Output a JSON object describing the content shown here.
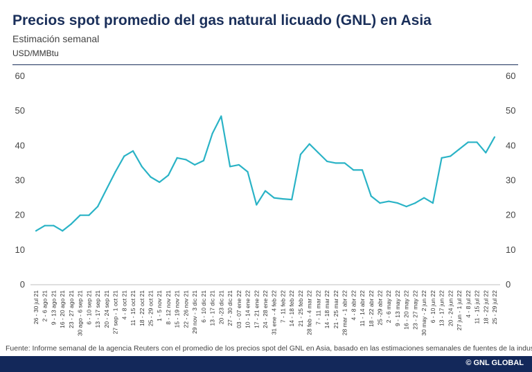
{
  "header": {
    "title": "Precios spot promedio del gas natural licuado (GNL) en Asia",
    "subtitle": "Estimación semanal",
    "unit": "USD/MMBtu"
  },
  "source_note": "Fuente: Informe semanal de la agencia Reuters con el promedio de los precios spot del GNL en Asia, basado en las estimaciones semanales de fuentes de la industria.",
  "brand": "© GNL GLOBAL",
  "colors": {
    "line": "#2ab3c6",
    "title": "#1a2f5a",
    "footer": "#13285a"
  },
  "chart_data": {
    "type": "line",
    "title": "Precios spot promedio del gas natural licuado (GNL) en Asia",
    "subtitle": "Estimación semanal",
    "ylabel": "USD/MMBtu",
    "ylim": [
      0,
      60
    ],
    "yticks": [
      0,
      10,
      20,
      30,
      40,
      50,
      60
    ],
    "grid": false,
    "categories": [
      "26 - 30 jul 21",
      "2 - 6 ago 21",
      "9 - 13 ago 21",
      "16 - 20 ago 21",
      "23 - 27 ago 21",
      "30 ago - 6 sep 21",
      "6 - 10 sep 21",
      "13 - 17 sep 21",
      "20 - 24 sep 21",
      "27 sep - 1 oct 21",
      "4 - 8 oct 21",
      "11 - 15 oct 21",
      "18 - 22 oct 21",
      "25 - 29 oct 21",
      "1 - 5 nov 21",
      "8 - 12 nov 21",
      "15 - 19 nov 21",
      "22 - 26 nov 21",
      "29 nov - 3 dic 21",
      "6 - 10 dic 21",
      "13 - 17 dic 21",
      "20 -23 dic 21",
      "27 - 30 dic 21",
      "03 - 07 ene 22",
      "10 - 14 ene 22",
      "17 - 21 ene 22",
      "24 - 28 ene 22",
      "31 ene - 4 feb 22",
      "7 - 11 feb 22",
      "14 - 18 feb 22",
      "21 - 25 feb 22",
      "28 feb - 4 mar 22",
      "7 - 11 mar 22",
      "14 - 18 mar 22",
      "21 - 25 mar 22",
      "28 mar - 1 abr 22",
      "4 - 8 abr 22",
      "11 - 14 abr 22",
      "18 - 22 abr 22",
      "25 -29 abr 22",
      "2 - 6 may 22",
      "9 - 13 may 22",
      "16 - 20 may 22",
      "23 - 27 may 22",
      "30 may - 2 jun 22",
      "6 - 10 jun 22",
      "13 - 17 jun 22",
      "20 - 24 jun 22",
      "27 jun - 1 jul 22",
      "4 - 8 jul 22",
      "11 - 15 jul 22",
      "18 - 22 jul 22",
      "25 - 29 jul 22"
    ],
    "series": [
      {
        "values": [
          15.5,
          17.0,
          17.0,
          15.5,
          17.5,
          20.0,
          20.0,
          22.5,
          27.5,
          32.5,
          37.0,
          38.5,
          34.0,
          31.0,
          29.5,
          31.5,
          36.5,
          36.0,
          34.5,
          35.7,
          43.5,
          48.5,
          34.0,
          34.5,
          32.5,
          23.0,
          27.0,
          25.0,
          24.7,
          24.5,
          37.5,
          40.5,
          38.0,
          35.5,
          35.0,
          35.0,
          33.0,
          33.0,
          25.5,
          23.5,
          24.0,
          23.5,
          22.5,
          23.5,
          25.0,
          23.5,
          36.5,
          37.0,
          39.0,
          41.0,
          41.0,
          38.0,
          42.5
        ]
      }
    ]
  }
}
